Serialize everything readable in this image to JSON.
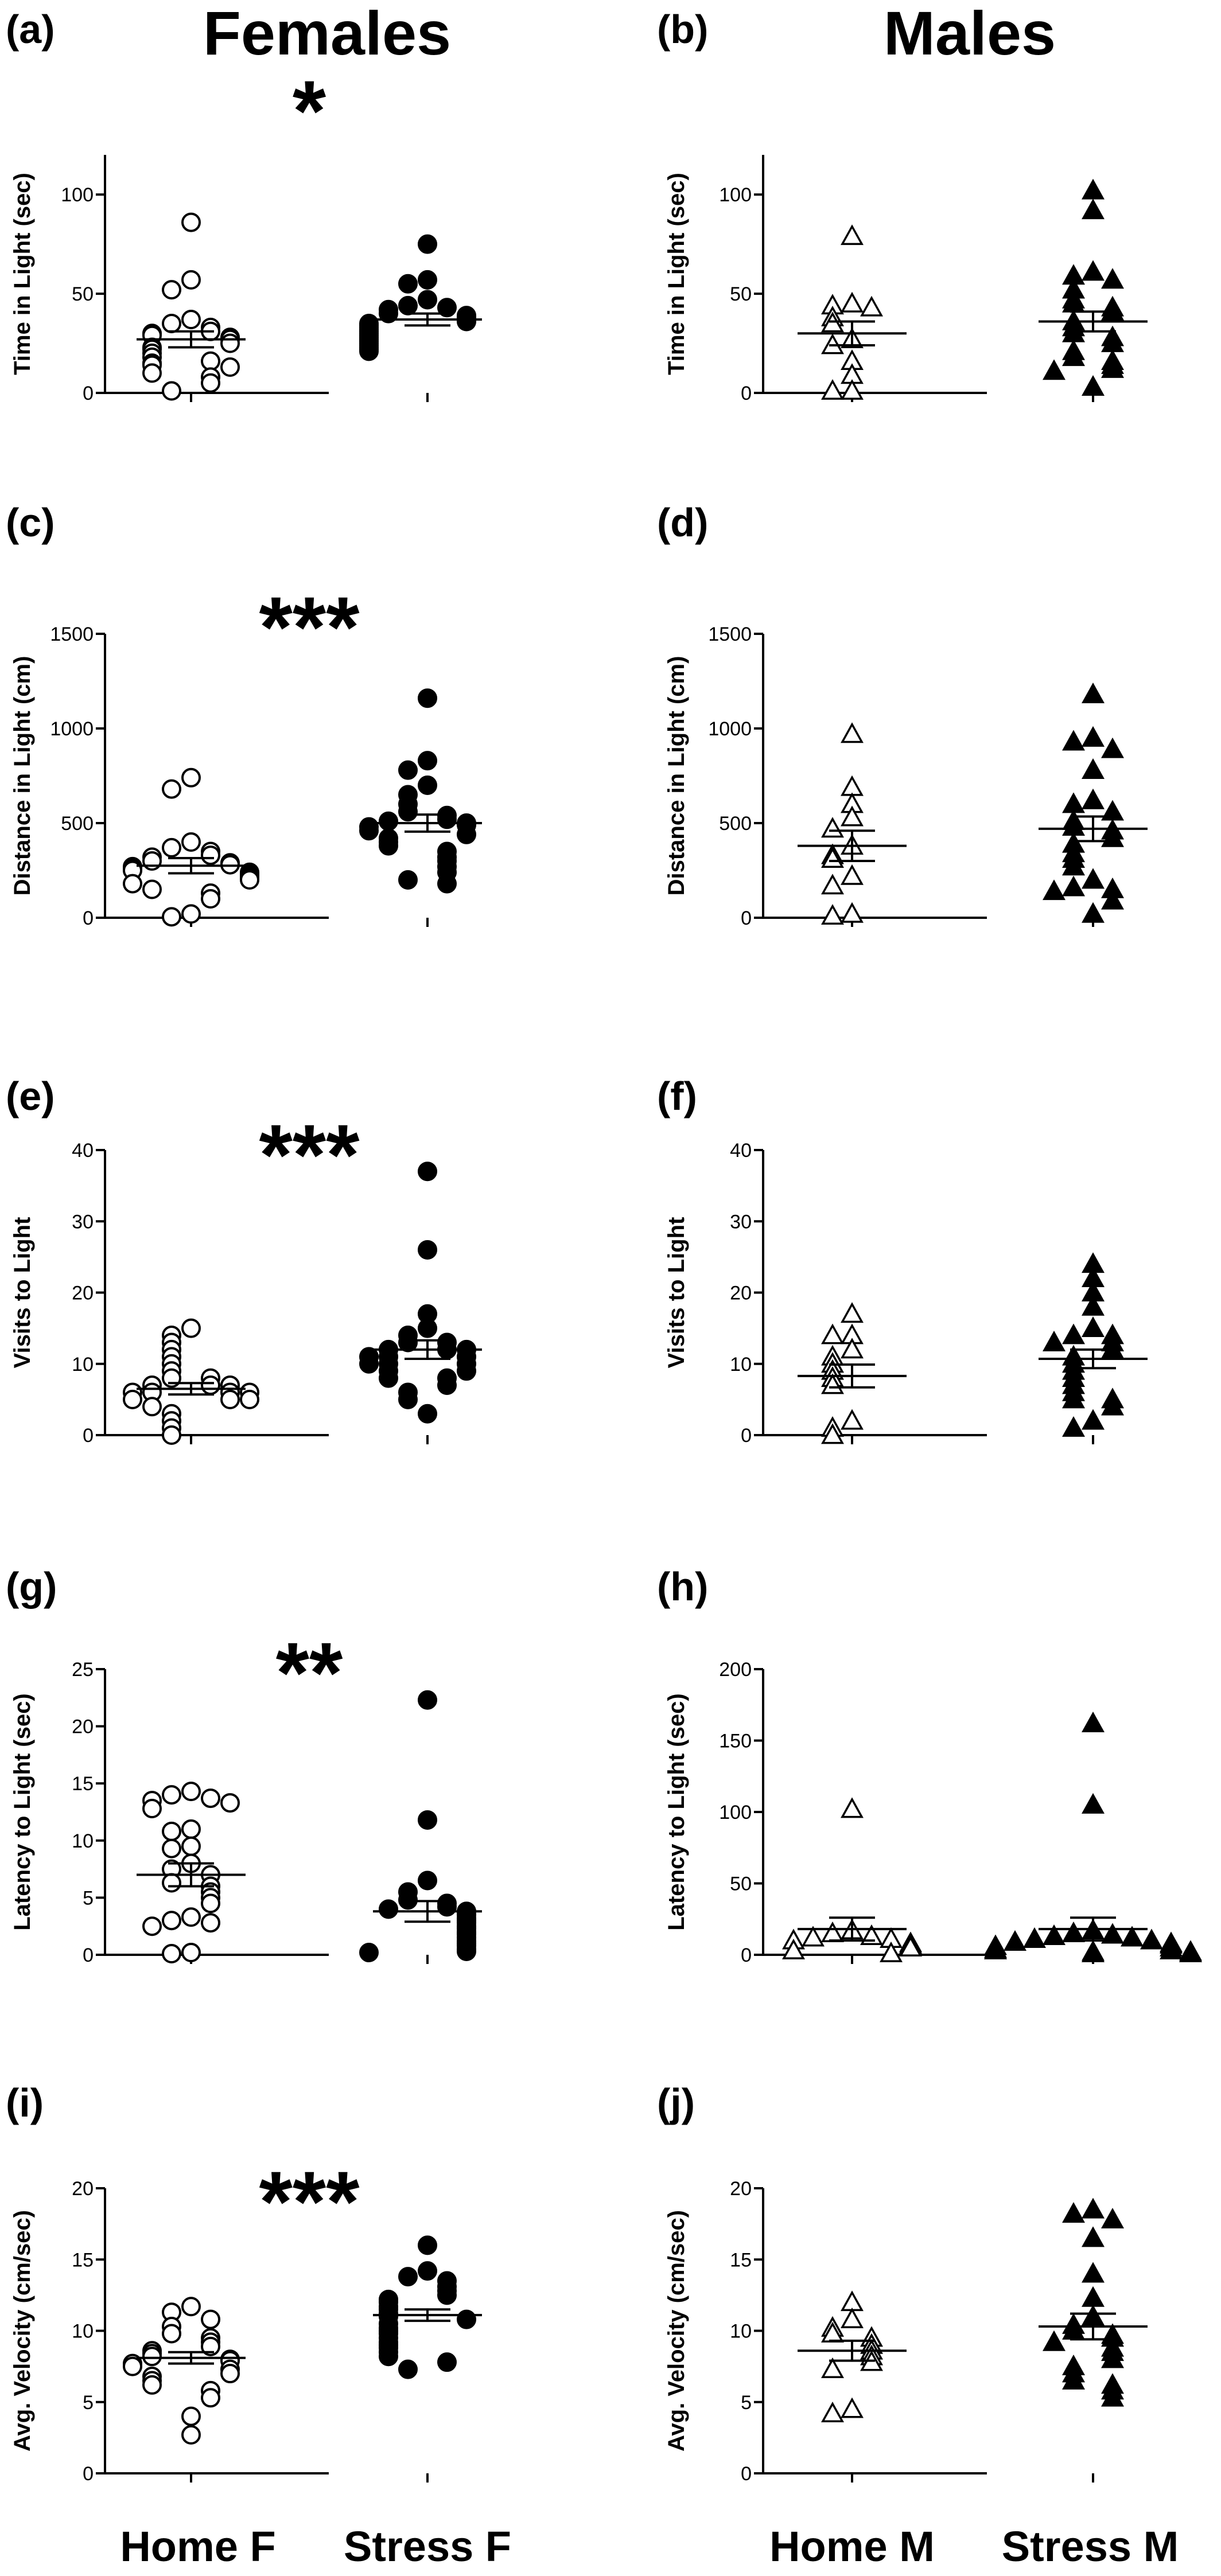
{
  "headers": {
    "left": "Females",
    "right": "Males"
  },
  "x_groups": {
    "left": [
      "Home F",
      "Stress F"
    ],
    "right": [
      "Home M",
      "Stress M"
    ]
  },
  "chart_data": [
    {
      "panel": "(a)",
      "type": "scatter",
      "ylabel": "Time in Light (sec)",
      "ylim": [
        0,
        120
      ],
      "yticks": [
        0,
        50,
        100
      ],
      "significance": "*",
      "series": [
        {
          "name": "Home F",
          "marker": "circle-open",
          "values": [
            86,
            57,
            52,
            37,
            35,
            33,
            31,
            30,
            29,
            28,
            27,
            25,
            23,
            22,
            20,
            18,
            16,
            15,
            14,
            13,
            10,
            8,
            5,
            1
          ],
          "mean": 27,
          "sem": 4
        },
        {
          "name": "Stress F",
          "marker": "circle-filled",
          "values": [
            75,
            57,
            55,
            47,
            44,
            43,
            42,
            40,
            39,
            38,
            37,
            36,
            35,
            34,
            33,
            32,
            31,
            30,
            29,
            28,
            27,
            26,
            25,
            24,
            23,
            22,
            21
          ],
          "mean": 37,
          "sem": 3
        }
      ]
    },
    {
      "panel": "(b)",
      "type": "scatter",
      "ylabel": "Time in Light (sec)",
      "ylim": [
        0,
        120
      ],
      "yticks": [
        0,
        50,
        100
      ],
      "significance": "",
      "series": [
        {
          "name": "Home M",
          "marker": "triangle-open",
          "values": [
            79,
            45,
            44,
            43,
            38,
            35,
            27,
            24,
            16,
            9,
            1,
            1
          ],
          "mean": 30,
          "sem": 6
        },
        {
          "name": "Stress M",
          "marker": "triangle-filled",
          "values": [
            102,
            92,
            61,
            59,
            57,
            52,
            47,
            45,
            43,
            41,
            36,
            33,
            30,
            28,
            25,
            21,
            18,
            16,
            14,
            12,
            11,
            3
          ],
          "mean": 36,
          "sem": 5
        }
      ]
    },
    {
      "panel": "(c)",
      "type": "scatter",
      "ylabel": "Distance in Light (cm)",
      "ylim": [
        0,
        1500
      ],
      "yticks": [
        0,
        500,
        1000,
        1500
      ],
      "significance": "***",
      "series": [
        {
          "name": "Home F",
          "marker": "circle-open",
          "values": [
            740,
            680,
            400,
            370,
            350,
            330,
            320,
            300,
            290,
            280,
            270,
            260,
            250,
            240,
            230,
            220,
            210,
            200,
            180,
            150,
            130,
            100,
            20,
            5
          ],
          "mean": 275,
          "sem": 40
        },
        {
          "name": "Stress F",
          "marker": "circle-filled",
          "values": [
            1160,
            830,
            780,
            700,
            650,
            600,
            560,
            540,
            520,
            510,
            500,
            490,
            480,
            460,
            440,
            420,
            400,
            380,
            350,
            320,
            300,
            270,
            240,
            200,
            180
          ],
          "mean": 500,
          "sem": 45
        }
      ]
    },
    {
      "panel": "(d)",
      "type": "scatter",
      "ylabel": "Distance in Light (cm)",
      "ylim": [
        0,
        1500
      ],
      "yticks": [
        0,
        500,
        1000,
        1500
      ],
      "significance": "",
      "series": [
        {
          "name": "Home M",
          "marker": "triangle-open",
          "values": [
            970,
            690,
            600,
            530,
            470,
            380,
            330,
            310,
            220,
            170,
            20,
            10
          ],
          "mean": 380,
          "sem": 80
        },
        {
          "name": "Stress M",
          "marker": "triangle-filled",
          "values": [
            1180,
            950,
            930,
            890,
            780,
            620,
            600,
            560,
            510,
            480,
            460,
            420,
            390,
            340,
            310,
            270,
            200,
            160,
            150,
            140,
            90,
            20
          ],
          "mean": 470,
          "sem": 65
        }
      ]
    },
    {
      "panel": "(e)",
      "type": "scatter",
      "ylabel": "Visits to Light",
      "ylim": [
        0,
        40
      ],
      "yticks": [
        0,
        10,
        20,
        30,
        40
      ],
      "significance": "***",
      "series": [
        {
          "name": "Home F",
          "marker": "circle-open",
          "values": [
            15,
            14,
            13,
            12,
            11,
            10,
            9,
            8,
            8,
            7,
            7,
            7,
            6,
            6,
            6,
            6,
            5,
            5,
            5,
            4,
            3,
            2,
            1,
            0
          ],
          "mean": 6.5,
          "sem": 0.8
        },
        {
          "name": "Stress F",
          "marker": "circle-filled",
          "values": [
            37,
            26,
            17,
            15,
            14,
            13,
            13,
            12,
            12,
            12,
            11,
            11,
            11,
            10,
            10,
            10,
            9,
            9,
            8,
            8,
            7,
            6,
            5,
            3
          ],
          "mean": 12,
          "sem": 1.3
        }
      ]
    },
    {
      "panel": "(f)",
      "type": "scatter",
      "ylabel": "Visits to Light",
      "ylim": [
        0,
        40
      ],
      "yticks": [
        0,
        10,
        20,
        30,
        40
      ],
      "significance": "",
      "series": [
        {
          "name": "Home M",
          "marker": "triangle-open",
          "values": [
            17,
            14,
            14,
            12,
            11,
            10,
            9,
            8,
            7,
            2,
            1,
            0
          ],
          "mean": 8.3,
          "sem": 1.6
        },
        {
          "name": "Stress M",
          "marker": "triangle-filled",
          "values": [
            24,
            22,
            20,
            18,
            15,
            14,
            14,
            13,
            13,
            12,
            11,
            10,
            9,
            8,
            7,
            6,
            5,
            5,
            4,
            2,
            1
          ],
          "mean": 10.7,
          "sem": 1.3
        }
      ]
    },
    {
      "panel": "(g)",
      "type": "scatter",
      "ylabel": "Latency to Light (sec)",
      "ylim": [
        0,
        25
      ],
      "yticks": [
        0,
        5,
        10,
        15,
        20,
        25
      ],
      "significance": "**",
      "series": [
        {
          "name": "Home F",
          "marker": "circle-open",
          "values": [
            14.3,
            14.0,
            13.7,
            13.5,
            13.3,
            12.8,
            11.0,
            10.8,
            9.5,
            9.3,
            8.0,
            7.5,
            7.0,
            6.3,
            6.0,
            5.5,
            5.0,
            4.5,
            3.3,
            3.0,
            2.8,
            2.5,
            0.2,
            0.1
          ],
          "mean": 7.0,
          "sem": 1.0
        },
        {
          "name": "Stress F",
          "marker": "circle-filled",
          "values": [
            22.3,
            11.8,
            6.5,
            5.5,
            4.8,
            4.5,
            4.2,
            4.0,
            3.8,
            3.5,
            3.2,
            3.0,
            2.8,
            2.5,
            2.3,
            2.0,
            1.8,
            1.5,
            1.2,
            1.0,
            0.8,
            0.5,
            0.3,
            0.2
          ],
          "mean": 3.8,
          "sem": 0.9
        }
      ]
    },
    {
      "panel": "(h)",
      "type": "scatter",
      "ylabel": "Latency to Light (sec)",
      "ylim": [
        0,
        200
      ],
      "yticks": [
        0,
        50,
        100,
        150,
        200
      ],
      "significance": "",
      "series": [
        {
          "name": "Home M",
          "marker": "triangle-open",
          "values": [
            102,
            17,
            15,
            13,
            12,
            11,
            10,
            8,
            7,
            5,
            3,
            1
          ],
          "mean": 18,
          "sem": 8
        },
        {
          "name": "Stress M",
          "marker": "triangle-filled",
          "values": [
            162,
            105,
            17,
            15,
            14,
            13,
            12,
            11,
            10,
            9,
            8,
            7,
            6,
            5,
            4,
            3,
            3,
            2,
            2,
            1,
            1
          ],
          "mean": 18,
          "sem": 8
        }
      ]
    },
    {
      "panel": "(i)",
      "type": "scatter",
      "ylabel": "Avg. Velocity (cm/sec)",
      "ylim": [
        0,
        20
      ],
      "yticks": [
        0,
        5,
        10,
        15,
        20
      ],
      "significance": "***",
      "series": [
        {
          "name": "Home F",
          "marker": "circle-open",
          "values": [
            11.7,
            11.3,
            10.8,
            10.3,
            9.8,
            9.5,
            9.2,
            8.9,
            8.6,
            8.4,
            8.2,
            8.0,
            7.9,
            7.7,
            7.5,
            7.3,
            7.0,
            6.8,
            6.5,
            6.2,
            5.8,
            5.3,
            4.0,
            2.7
          ],
          "mean": 8.1,
          "sem": 0.4
        },
        {
          "name": "Stress F",
          "marker": "circle-filled",
          "values": [
            16.0,
            14.2,
            13.8,
            13.5,
            13.1,
            12.8,
            12.5,
            12.2,
            12.0,
            11.7,
            11.5,
            11.2,
            11.0,
            10.8,
            10.5,
            10.2,
            10.0,
            9.8,
            9.5,
            9.2,
            9.0,
            8.8,
            8.5,
            8.2,
            7.8,
            7.3
          ],
          "mean": 11.1,
          "sem": 0.4
        }
      ]
    },
    {
      "panel": "(j)",
      "type": "scatter",
      "ylabel": "Avg. Velocity (cm/sec)",
      "ylim": [
        0,
        20
      ],
      "yticks": [
        0,
        5,
        10,
        15,
        20
      ],
      "significance": "",
      "series": [
        {
          "name": "Home M",
          "marker": "triangle-open",
          "values": [
            12.0,
            10.8,
            10.2,
            9.8,
            9.5,
            9.0,
            8.6,
            8.2,
            7.8,
            7.3,
            4.5,
            4.2
          ],
          "mean": 8.6,
          "sem": 0.7
        },
        {
          "name": "Stress M",
          "marker": "triangle-filled",
          "values": [
            18.5,
            18.2,
            17.8,
            16.5,
            14.0,
            12.3,
            11.0,
            10.4,
            10.0,
            9.7,
            9.5,
            9.2,
            8.8,
            8.5,
            8.0,
            7.5,
            7.0,
            6.5,
            6.2,
            5.8,
            5.3
          ],
          "mean": 10.3,
          "sem": 0.9
        }
      ]
    }
  ]
}
